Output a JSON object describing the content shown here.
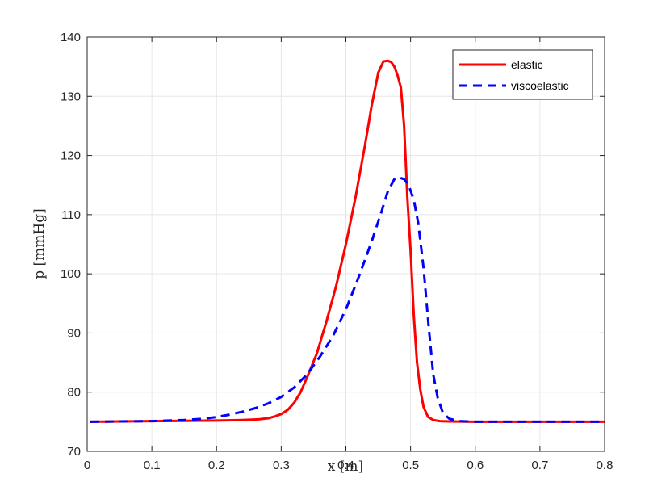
{
  "chart_data": {
    "type": "line",
    "xlabel": "x [m]",
    "ylabel": "p [mmHg]",
    "xlim": [
      0,
      0.8
    ],
    "ylim": [
      70,
      140
    ],
    "xticks": [
      "0",
      "0.1",
      "0.2",
      "0.3",
      "0.4",
      "0.5",
      "0.6",
      "0.7",
      "0.8"
    ],
    "yticks": [
      "70",
      "80",
      "90",
      "100",
      "110",
      "120",
      "130",
      "140"
    ],
    "grid": true,
    "legend_position": "top-right",
    "series": [
      {
        "name": "elastic",
        "color": "#ff0000",
        "style": "solid",
        "x": [
          0.005,
          0.05,
          0.1,
          0.15,
          0.2,
          0.24,
          0.265,
          0.28,
          0.29,
          0.3,
          0.31,
          0.32,
          0.33,
          0.34,
          0.355,
          0.37,
          0.385,
          0.4,
          0.415,
          0.43,
          0.44,
          0.45,
          0.458,
          0.465,
          0.47,
          0.475,
          0.48,
          0.485,
          0.49,
          0.495,
          0.5,
          0.505,
          0.51,
          0.515,
          0.52,
          0.527,
          0.535,
          0.545,
          0.56,
          0.6,
          0.7,
          0.8
        ],
        "y": [
          75,
          75.05,
          75.1,
          75.15,
          75.2,
          75.3,
          75.4,
          75.6,
          75.9,
          76.3,
          77,
          78.2,
          80,
          82.5,
          86.5,
          92,
          98,
          105,
          113,
          122,
          128.5,
          134,
          135.9,
          136,
          135.8,
          135,
          133.5,
          131.5,
          125,
          113,
          104,
          93,
          85,
          80.5,
          77.5,
          75.8,
          75.3,
          75.1,
          75.05,
          75,
          75,
          75
        ]
      },
      {
        "name": "viscoelastic",
        "color": "#0000ff",
        "style": "dashed",
        "x": [
          0.005,
          0.05,
          0.1,
          0.15,
          0.18,
          0.2,
          0.22,
          0.24,
          0.26,
          0.28,
          0.3,
          0.32,
          0.34,
          0.36,
          0.38,
          0.4,
          0.42,
          0.44,
          0.455,
          0.465,
          0.475,
          0.482,
          0.49,
          0.497,
          0.505,
          0.512,
          0.52,
          0.528,
          0.535,
          0.542,
          0.55,
          0.56,
          0.575,
          0.6,
          0.7,
          0.8
        ],
        "y": [
          75,
          75.05,
          75.1,
          75.3,
          75.5,
          75.8,
          76.2,
          76.7,
          77.3,
          78.1,
          79.2,
          80.8,
          83,
          86,
          89.5,
          94,
          99.5,
          105.5,
          110.5,
          114,
          116,
          116.3,
          116,
          115,
          112.5,
          108.5,
          101,
          91,
          83,
          79,
          76.5,
          75.5,
          75.1,
          75,
          75,
          75
        ]
      }
    ]
  }
}
